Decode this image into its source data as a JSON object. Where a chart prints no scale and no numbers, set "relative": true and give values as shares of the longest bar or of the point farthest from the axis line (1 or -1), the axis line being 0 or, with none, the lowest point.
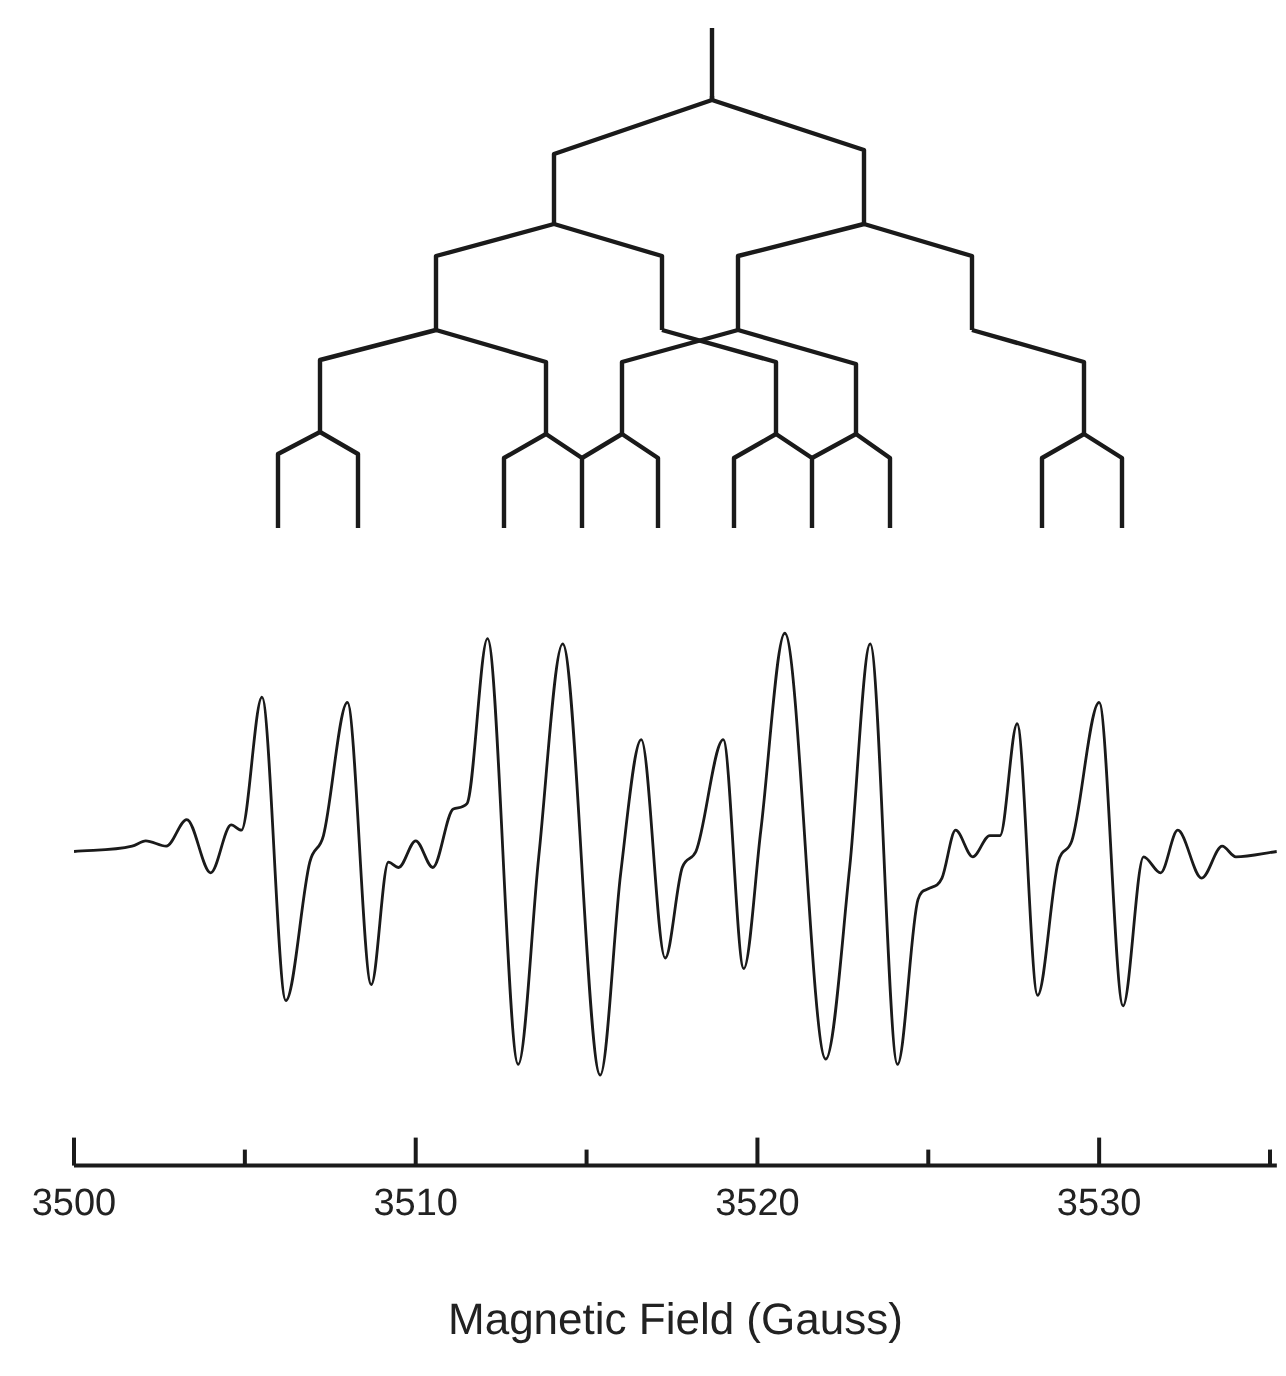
{
  "chart_data": {
    "type": "line",
    "xlabel": "Magnetic Field (Gauss)",
    "relative": true,
    "color": "#1a1a1a",
    "line_style": "solid",
    "x": [
      3500.0,
      3501.7,
      3502.1,
      3502.7,
      3503.3,
      3504.0,
      3504.6,
      3504.9,
      3505.5,
      3506.2,
      3506.9,
      3507.3,
      3508.0,
      3508.7,
      3509.2,
      3509.5,
      3510.0,
      3510.5,
      3511.1,
      3511.5,
      3512.1,
      3513.0,
      3513.6,
      3514.3,
      3515.4,
      3516.0,
      3516.6,
      3517.3,
      3517.8,
      3518.2,
      3519.0,
      3519.6,
      3520.1,
      3520.8,
      3522.0,
      3522.7,
      3523.3,
      3524.1,
      3524.7,
      3525.0,
      3525.4,
      3525.8,
      3526.3,
      3526.8,
      3527.1,
      3527.6,
      3528.2,
      3528.8,
      3529.2,
      3530.0,
      3530.7,
      3531.3,
      3531.8,
      3532.3,
      3533.0,
      3533.6,
      3534.0,
      3535.2
    ],
    "values": [
      0.59,
      0.6,
      0.61,
      0.6,
      0.65,
      0.55,
      0.64,
      0.63,
      0.88,
      0.31,
      0.57,
      0.62,
      0.87,
      0.34,
      0.57,
      0.56,
      0.61,
      0.56,
      0.67,
      0.68,
      0.99,
      0.19,
      0.58,
      0.98,
      0.17,
      0.55,
      0.8,
      0.39,
      0.56,
      0.59,
      0.8,
      0.37,
      0.63,
      1.0,
      0.2,
      0.56,
      0.98,
      0.19,
      0.5,
      0.52,
      0.54,
      0.63,
      0.58,
      0.62,
      0.62,
      0.83,
      0.32,
      0.57,
      0.61,
      0.87,
      0.3,
      0.58,
      0.55,
      0.63,
      0.54,
      0.6,
      0.58,
      0.59
    ],
    "xlim": [
      3500,
      3535.2
    ],
    "xticks": [
      3500,
      {
        "value": 3505,
        "label": null
      },
      3510,
      {
        "value": 3515,
        "label": null
      },
      3520,
      {
        "value": 3525,
        "label": null
      },
      3530,
      {
        "value": 3535,
        "label": null
      }
    ]
  }
}
